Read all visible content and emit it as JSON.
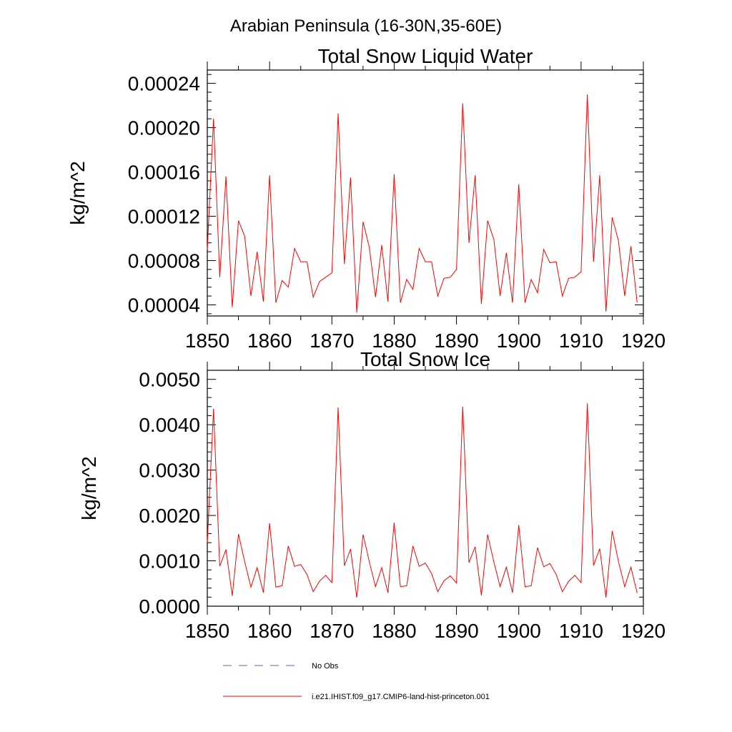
{
  "suptitle": "Arabian Peninsula (16-30N,35-60E)",
  "legend": {
    "items": [
      {
        "label": "No Obs",
        "color": "#5a6aa8",
        "dash": "12,10"
      },
      {
        "label": "i.e21.IHIST.f09_g17.CMIP6-land-hist-princeton.001",
        "color": "#ff0000",
        "dash": ""
      }
    ]
  },
  "chart_data": [
    {
      "type": "line",
      "title": "Total Snow Liquid Water",
      "ylabel": "kg/m^2",
      "xlim": [
        1850,
        1920
      ],
      "ylim": [
        3e-05,
        0.000252
      ],
      "xticks": [
        1850,
        1860,
        1870,
        1880,
        1890,
        1900,
        1910,
        1920
      ],
      "yticks": [
        4e-05,
        8e-05,
        0.00012,
        0.00016,
        0.0002,
        0.00024
      ],
      "ytick_labels": [
        "0.00004",
        "0.00008",
        "0.00012",
        "0.00016",
        "0.00020",
        "0.00024"
      ],
      "series": [
        {
          "color": "#ff0000",
          "x": [
            1850,
            1851,
            1852,
            1853,
            1854,
            1855,
            1856,
            1857,
            1858,
            1859,
            1860,
            1861,
            1862,
            1863,
            1864,
            1865,
            1866,
            1867,
            1868,
            1869,
            1870,
            1871,
            1872,
            1873,
            1874,
            1875,
            1876,
            1877,
            1878,
            1879,
            1880,
            1881,
            1882,
            1883,
            1884,
            1885,
            1886,
            1887,
            1888,
            1889,
            1890,
            1891,
            1892,
            1893,
            1894,
            1895,
            1896,
            1897,
            1898,
            1899,
            1900,
            1901,
            1902,
            1903,
            1904,
            1905,
            1906,
            1907,
            1908,
            1909,
            1910,
            1911,
            1912,
            1913,
            1914,
            1915,
            1916,
            1917,
            1918,
            1919
          ],
          "values": [
            9e-05,
            0.000208,
            6.5e-05,
            0.000156,
            3.8e-05,
            0.000116,
            0.000102,
            4.8e-05,
            8.8e-05,
            4.3e-05,
            0.000157,
            4.2e-05,
            6.2e-05,
            5.6e-05,
            9.1e-05,
            7.9e-05,
            7.9e-05,
            4.7e-05,
            6.1e-05,
            6.5e-05,
            6.9e-05,
            0.000213,
            7.7e-05,
            0.000155,
            3.3e-05,
            0.000115,
            9.2e-05,
            4.7e-05,
            9.4e-05,
            4.3e-05,
            0.000158,
            4.2e-05,
            6.3e-05,
            5.4e-05,
            9.1e-05,
            7.9e-05,
            7.9e-05,
            4.8e-05,
            6.4e-05,
            6.5e-05,
            7.2e-05,
            0.000222,
            9.6e-05,
            0.000157,
            4.1e-05,
            0.000116,
            9.9e-05,
            4.8e-05,
            8.7e-05,
            4.2e-05,
            0.000149,
            4.2e-05,
            6.3e-05,
            5.1e-05,
            9e-05,
            7.8e-05,
            7.9e-05,
            4.8e-05,
            6.4e-05,
            6.5e-05,
            7e-05,
            0.00023,
            7.9e-05,
            0.000157,
            3.4e-05,
            0.000119,
            9.8e-05,
            4.8e-05,
            9.3e-05,
            4.2e-05
          ]
        }
      ]
    },
    {
      "type": "line",
      "title": "Total Snow Ice",
      "ylabel": "kg/m^2",
      "xlim": [
        1850,
        1920
      ],
      "ylim": [
        0.0,
        0.0052
      ],
      "xticks": [
        1850,
        1860,
        1870,
        1880,
        1890,
        1900,
        1910,
        1920
      ],
      "yticks": [
        0.0,
        0.001,
        0.002,
        0.003,
        0.004,
        0.005
      ],
      "ytick_labels": [
        "0.0000",
        "0.0010",
        "0.0020",
        "0.0030",
        "0.0040",
        "0.0050"
      ],
      "series": [
        {
          "color": "#ff0000",
          "x": [
            1850,
            1851,
            1852,
            1853,
            1854,
            1855,
            1856,
            1857,
            1858,
            1859,
            1860,
            1861,
            1862,
            1863,
            1864,
            1865,
            1866,
            1867,
            1868,
            1869,
            1870,
            1871,
            1872,
            1873,
            1874,
            1875,
            1876,
            1877,
            1878,
            1879,
            1880,
            1881,
            1882,
            1883,
            1884,
            1885,
            1886,
            1887,
            1888,
            1889,
            1890,
            1891,
            1892,
            1893,
            1894,
            1895,
            1896,
            1897,
            1898,
            1899,
            1900,
            1901,
            1902,
            1903,
            1904,
            1905,
            1906,
            1907,
            1908,
            1909,
            1910,
            1911,
            1912,
            1913,
            1914,
            1915,
            1916,
            1917,
            1918,
            1919
          ],
          "values": [
            0.0014,
            0.00435,
            0.00088,
            0.00125,
            0.00023,
            0.00159,
            0.00098,
            0.00042,
            0.00085,
            0.0003,
            0.00183,
            0.00042,
            0.00045,
            0.00133,
            0.00088,
            0.00092,
            0.0007,
            0.00032,
            0.00055,
            0.00068,
            0.00052,
            0.00438,
            0.00089,
            0.00126,
            0.00019,
            0.00158,
            0.00098,
            0.00043,
            0.00085,
            0.0003,
            0.00184,
            0.00043,
            0.00045,
            0.00133,
            0.00088,
            0.00095,
            0.00072,
            0.00032,
            0.00056,
            0.00067,
            0.00051,
            0.0044,
            0.00096,
            0.00131,
            0.00024,
            0.00158,
            0.00097,
            0.00043,
            0.00086,
            0.0003,
            0.00179,
            0.00043,
            0.00045,
            0.00129,
            0.00087,
            0.00094,
            0.0007,
            0.00032,
            0.00055,
            0.00068,
            0.00052,
            0.00447,
            0.0009,
            0.00127,
            0.00019,
            0.00166,
            0.00099,
            0.00043,
            0.00086,
            0.00029
          ]
        }
      ]
    }
  ]
}
